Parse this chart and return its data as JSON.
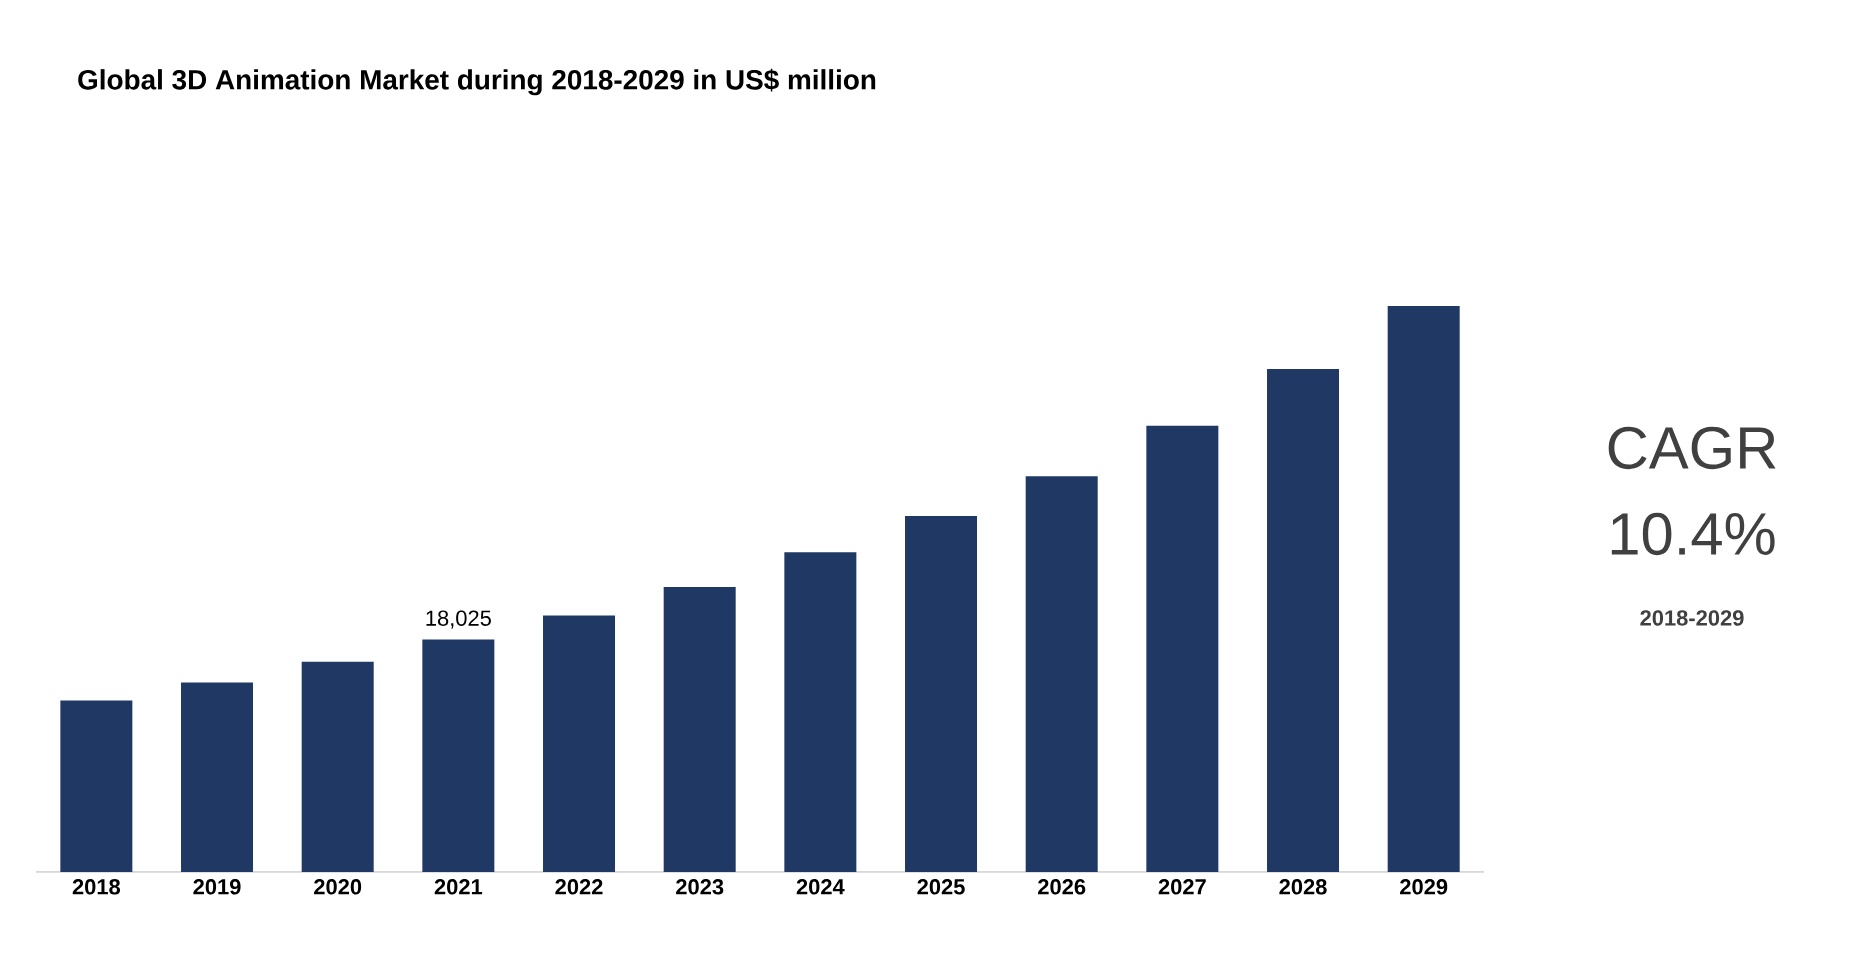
{
  "chart_data": {
    "type": "bar",
    "title": "Global 3D Animation Market during 2018-2029 in US$ million",
    "categories": [
      "2018",
      "2019",
      "2020",
      "2021",
      "2022",
      "2023",
      "2024",
      "2025",
      "2026",
      "2027",
      "2028",
      "2029"
    ],
    "values": [
      13300,
      14700,
      16300,
      18025,
      19900,
      22100,
      24800,
      27600,
      30700,
      34600,
      39000,
      43900
    ],
    "value_labels": [
      null,
      null,
      null,
      "18,025",
      null,
      null,
      null,
      null,
      null,
      null,
      null,
      null
    ],
    "color": "#1f3864",
    "annotations": [
      "CAGR",
      "10.4%",
      "2018-2029"
    ]
  }
}
